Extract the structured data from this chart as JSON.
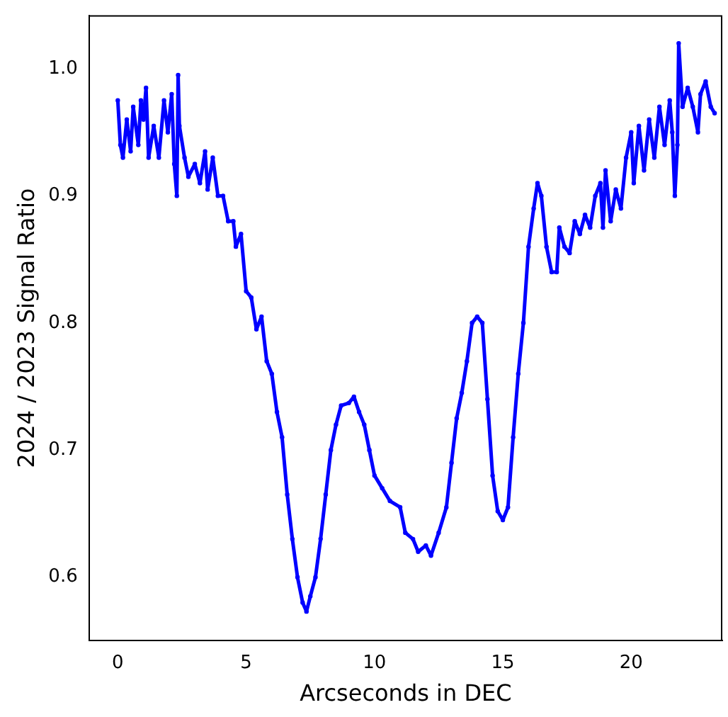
{
  "chart_data": {
    "type": "line",
    "xlabel": "Arcseconds in DEC",
    "ylabel": "2024 / 2023 Signal Ratio",
    "x": [
      0,
      0.1,
      0.2,
      0.35,
      0.5,
      0.6,
      0.8,
      0.9,
      1.0,
      1.1,
      1.2,
      1.4,
      1.6,
      1.8,
      1.95,
      2.1,
      2.2,
      2.3,
      2.35,
      2.4,
      2.6,
      2.75,
      3.0,
      3.2,
      3.4,
      3.5,
      3.7,
      3.9,
      4.1,
      4.3,
      4.5,
      4.6,
      4.8,
      5.0,
      5.2,
      5.4,
      5.6,
      5.8,
      6.0,
      6.2,
      6.4,
      6.6,
      6.8,
      7.0,
      7.2,
      7.35,
      7.5,
      7.7,
      7.9,
      8.1,
      8.3,
      8.5,
      8.7,
      9.0,
      9.2,
      9.4,
      9.6,
      9.8,
      10.0,
      10.3,
      10.6,
      11.0,
      11.2,
      11.5,
      11.7,
      12.0,
      12.2,
      12.5,
      12.8,
      13.0,
      13.2,
      13.4,
      13.6,
      13.8,
      14.0,
      14.2,
      14.4,
      14.6,
      14.8,
      15.0,
      15.2,
      15.4,
      15.6,
      15.8,
      16.0,
      16.2,
      16.35,
      16.5,
      16.7,
      16.9,
      17.1,
      17.2,
      17.4,
      17.6,
      17.8,
      18.0,
      18.2,
      18.4,
      18.6,
      18.8,
      18.9,
      19.0,
      19.2,
      19.4,
      19.6,
      19.8,
      20.0,
      20.1,
      20.3,
      20.5,
      20.7,
      20.9,
      21.1,
      21.3,
      21.5,
      21.6,
      21.7,
      21.8,
      21.85,
      22.0,
      22.2,
      22.4,
      22.6,
      22.7,
      22.9,
      23.1,
      23.25
    ],
    "series": [
      {
        "color": "#0000ff",
        "values": [
          0.975,
          0.94,
          0.93,
          0.96,
          0.935,
          0.97,
          0.94,
          0.975,
          0.96,
          0.985,
          0.93,
          0.955,
          0.93,
          0.975,
          0.95,
          0.98,
          0.925,
          0.9,
          0.995,
          0.955,
          0.93,
          0.915,
          0.925,
          0.91,
          0.935,
          0.905,
          0.93,
          0.9,
          0.9,
          0.88,
          0.88,
          0.86,
          0.87,
          0.825,
          0.82,
          0.795,
          0.805,
          0.77,
          0.76,
          0.73,
          0.71,
          0.665,
          0.63,
          0.6,
          0.58,
          0.573,
          0.585,
          0.6,
          0.63,
          0.665,
          0.7,
          0.72,
          0.735,
          0.737,
          0.742,
          0.73,
          0.72,
          0.7,
          0.68,
          0.67,
          0.66,
          0.655,
          0.635,
          0.63,
          0.62,
          0.625,
          0.617,
          0.635,
          0.655,
          0.69,
          0.725,
          0.745,
          0.77,
          0.8,
          0.805,
          0.8,
          0.74,
          0.68,
          0.652,
          0.645,
          0.655,
          0.71,
          0.76,
          0.8,
          0.86,
          0.89,
          0.91,
          0.9,
          0.86,
          0.84,
          0.84,
          0.875,
          0.86,
          0.855,
          0.88,
          0.87,
          0.885,
          0.875,
          0.9,
          0.91,
          0.875,
          0.92,
          0.88,
          0.905,
          0.89,
          0.93,
          0.95,
          0.91,
          0.955,
          0.92,
          0.96,
          0.93,
          0.97,
          0.94,
          0.975,
          0.95,
          0.9,
          0.94,
          1.02,
          0.97,
          0.985,
          0.97,
          0.95,
          0.98,
          0.99,
          0.97,
          0.965
        ]
      }
    ],
    "xlim": [
      -1.12,
      23.55
    ],
    "xticks": [
      0,
      5,
      10,
      15,
      20
    ],
    "ylim": [
      0.55,
      1.042
    ],
    "yticks": [
      0.6,
      0.7,
      0.8,
      0.9,
      {
        "value": 1,
        "label": "1.0"
      }
    ],
    "grid": false,
    "legend": false,
    "marker": "circle",
    "line_style": "solid"
  }
}
